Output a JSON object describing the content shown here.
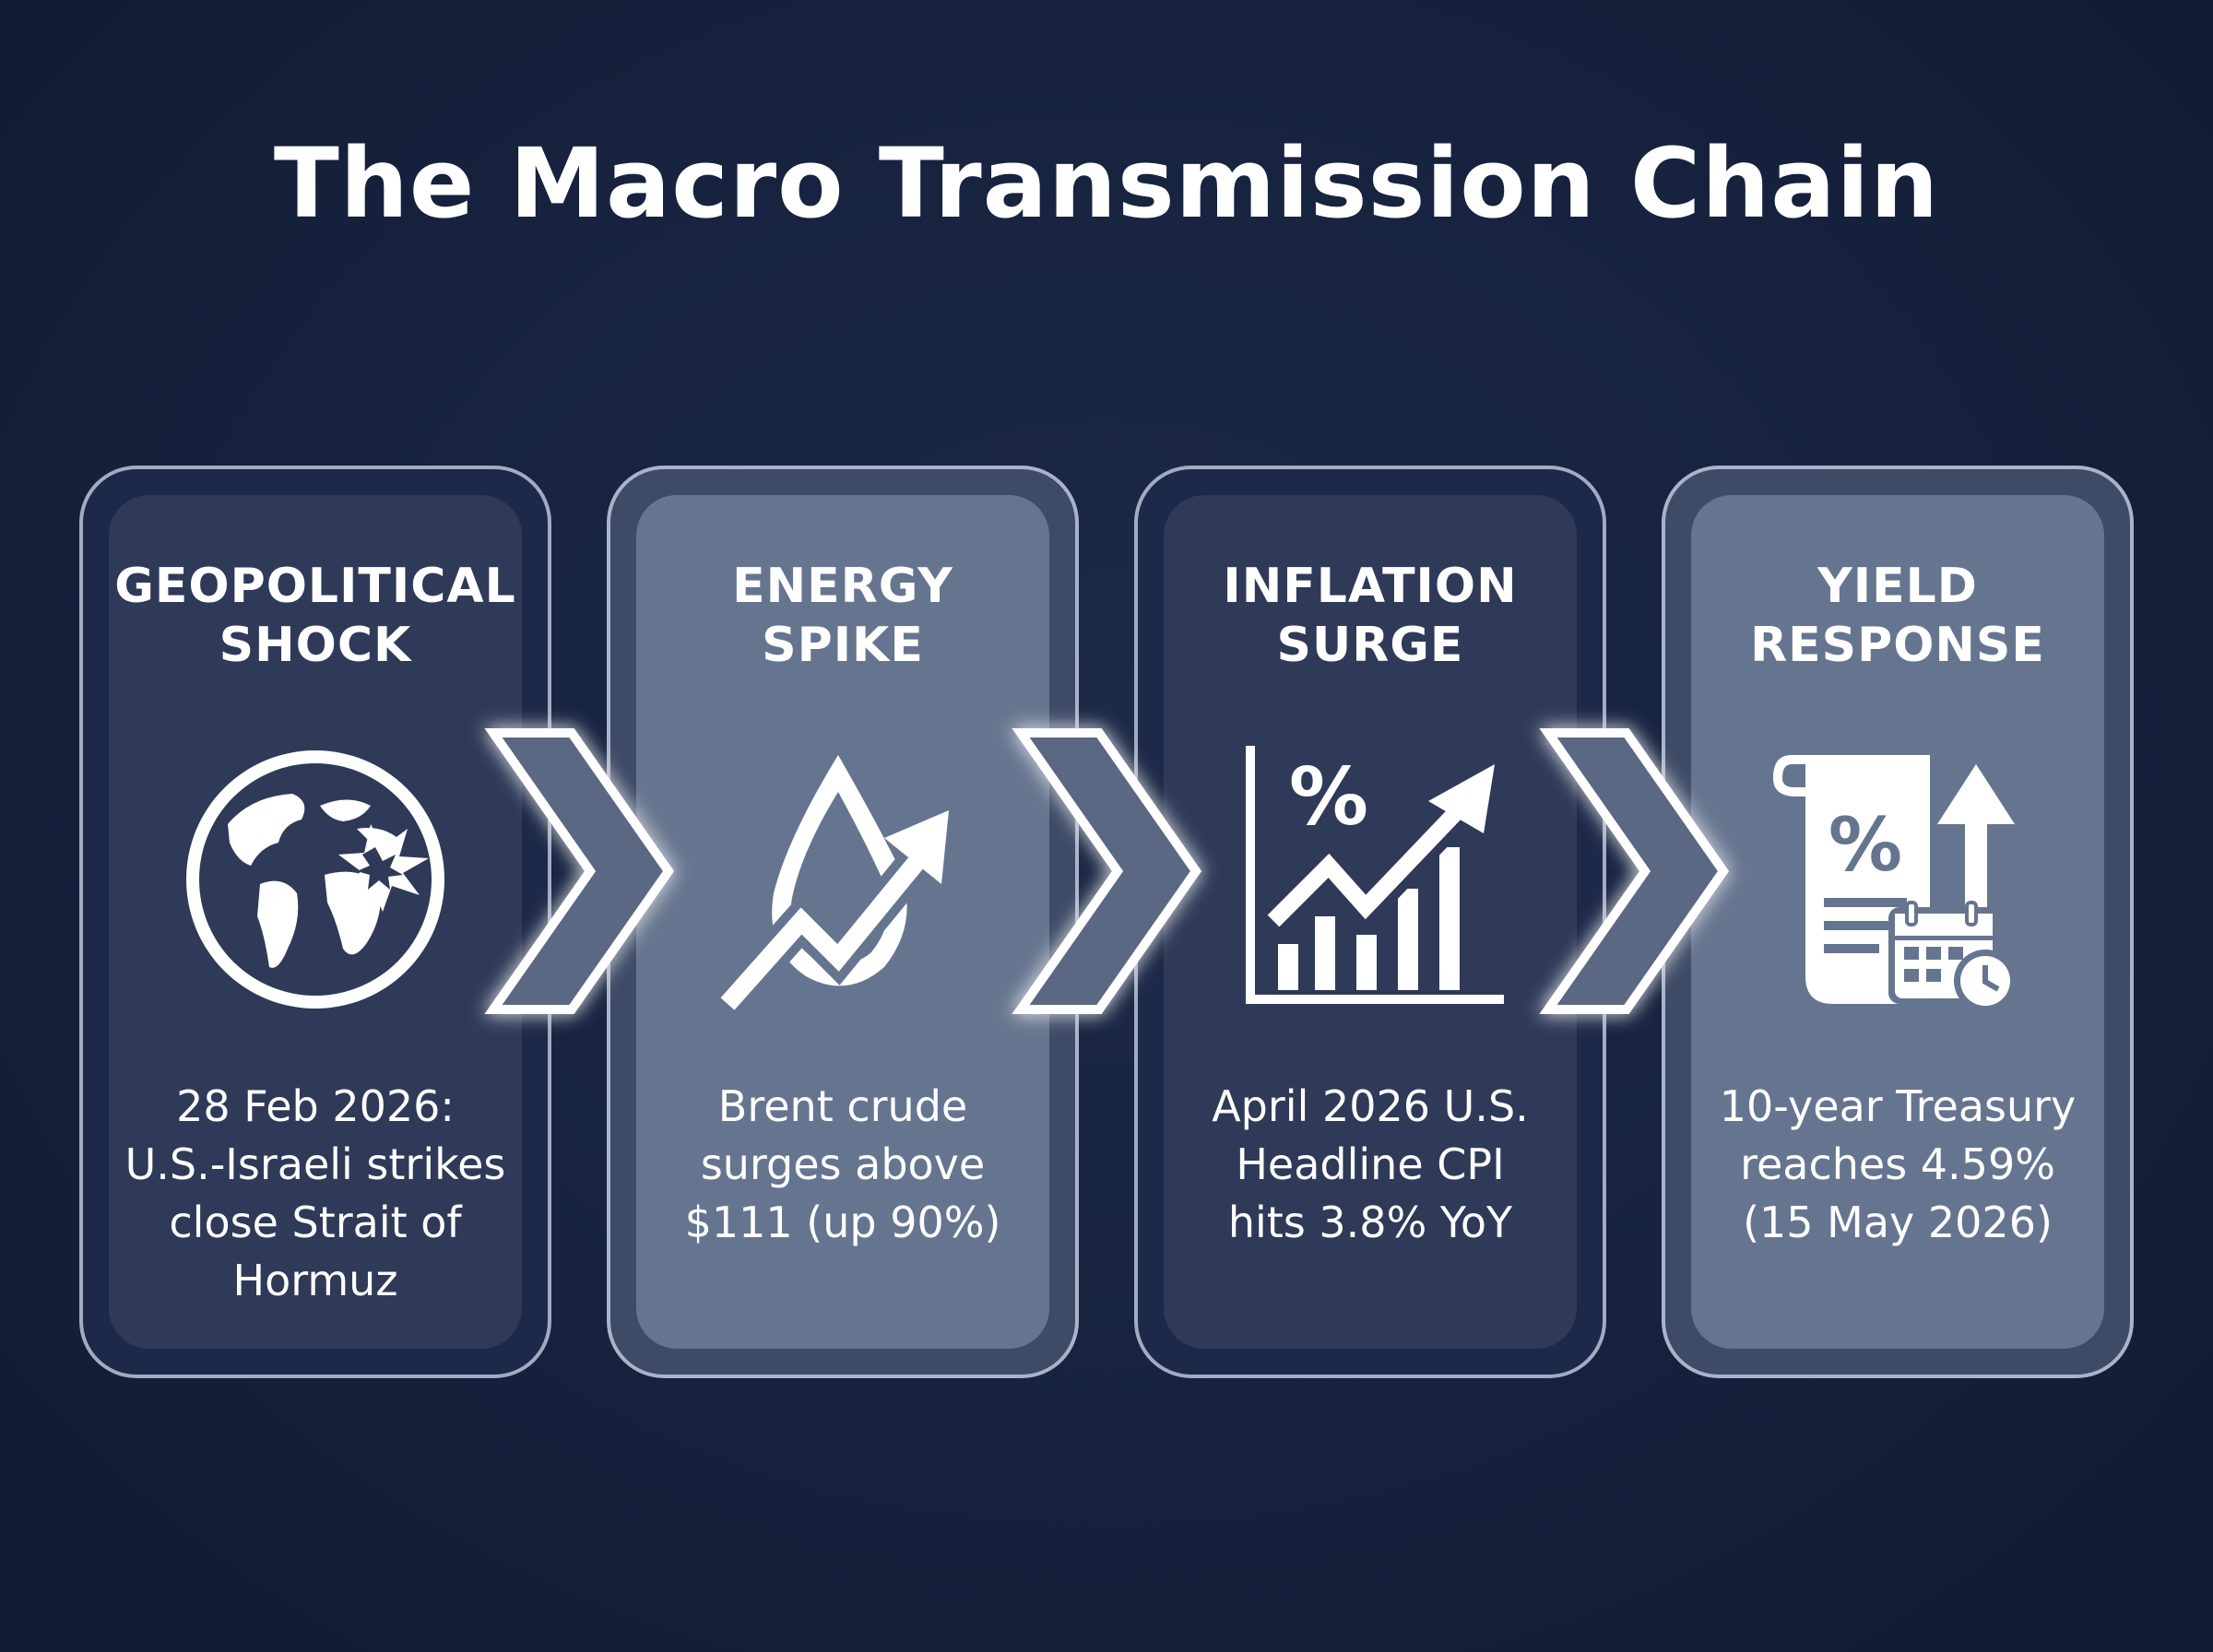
{
  "title": "The Macro Transmission Chain",
  "steps": [
    {
      "title_line1": "GEOPOLITICAL",
      "title_line2": "SHOCK",
      "icon": "globe-explosion-icon",
      "text_lines": [
        "28 Feb 2026:",
        "U.S.-Israeli strikes",
        "close Strait of",
        "Hormuz"
      ]
    },
    {
      "title_line1": "ENERGY",
      "title_line2": "SPIKE",
      "icon": "oil-drop-rising-arrow-icon",
      "text_lines": [
        "Brent crude",
        "surges above",
        "$111 (up 90%)"
      ]
    },
    {
      "title_line1": "INFLATION",
      "title_line2": "SURGE",
      "icon": "percent-rising-chart-icon",
      "text_lines": [
        "April 2026 U.S.",
        "Headline CPI",
        "hits 3.8% YoY"
      ]
    },
    {
      "title_line1": "YIELD",
      "title_line2": "RESPONSE",
      "icon": "bond-document-calendar-icon",
      "text_lines": [
        "10-year Treasury",
        "reaches 4.59%",
        "(15 May 2026)"
      ]
    }
  ],
  "colors": {
    "background": "#16223e",
    "card_dark": "#2e3a58",
    "card_light": "#66758f",
    "text": "#ffffff"
  }
}
